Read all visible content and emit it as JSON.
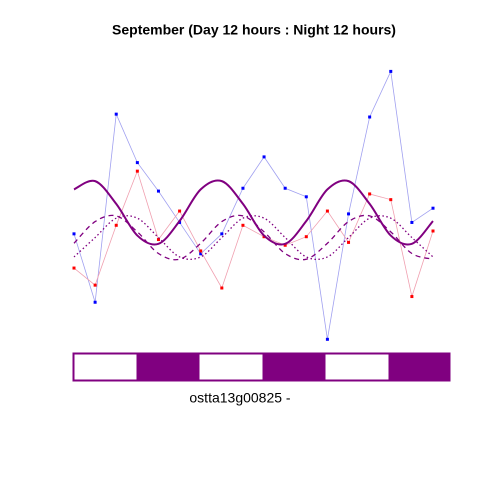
{
  "chart_data": {
    "type": "line",
    "title": "September (Day 12 hours : Night 12 hours)",
    "xlabel": "ostta13g00825 -",
    "x": [
      0,
      4,
      8,
      12,
      16,
      20,
      24,
      28,
      32,
      36,
      40,
      44,
      48,
      52,
      56,
      60,
      64,
      68
    ],
    "xlim": [
      0,
      68
    ],
    "ylim": [
      0,
      10
    ],
    "series": [
      {
        "color": "#0000ff",
        "line_color": "#a0a0f0",
        "style": "points",
        "values": [
          3.9,
          1.5,
          8.1,
          6.4,
          5.4,
          4.3,
          3.2,
          3.9,
          5.5,
          6.6,
          5.5,
          5.2,
          0.2,
          4.6,
          8.0,
          9.6,
          4.3,
          4.8
        ]
      },
      {
        "color": "#ff0000",
        "line_color": "#f0a0b0",
        "style": "points",
        "values": [
          2.7,
          2.1,
          4.2,
          6.1,
          3.7,
          4.7,
          3.3,
          2.0,
          4.2,
          3.8,
          3.5,
          3.8,
          4.7,
          3.6,
          5.3,
          5.1,
          1.7,
          4.0
        ]
      },
      {
        "color": "#800080",
        "style": "solid",
        "values": [
          5.46,
          5.75,
          4.95,
          3.84,
          3.55,
          4.35,
          5.46,
          5.75,
          4.95,
          3.84,
          3.55,
          4.35,
          5.46,
          5.75,
          4.95,
          3.84,
          3.55,
          4.35
        ]
      },
      {
        "color": "#800080",
        "style": "dashed",
        "values": [
          3.57,
          4.33,
          4.53,
          3.97,
          3.21,
          3.01,
          3.57,
          4.33,
          4.53,
          3.97,
          3.21,
          3.01,
          3.57,
          4.33,
          4.53,
          3.97,
          3.21,
          3.01
        ]
      },
      {
        "color": "#800080",
        "style": "dotted",
        "values": [
          3.09,
          3.77,
          4.45,
          4.45,
          3.77,
          3.09,
          3.09,
          3.77,
          4.45,
          4.45,
          3.77,
          3.09,
          3.09,
          3.77,
          4.45,
          4.45,
          3.77,
          3.09
        ]
      }
    ]
  }
}
